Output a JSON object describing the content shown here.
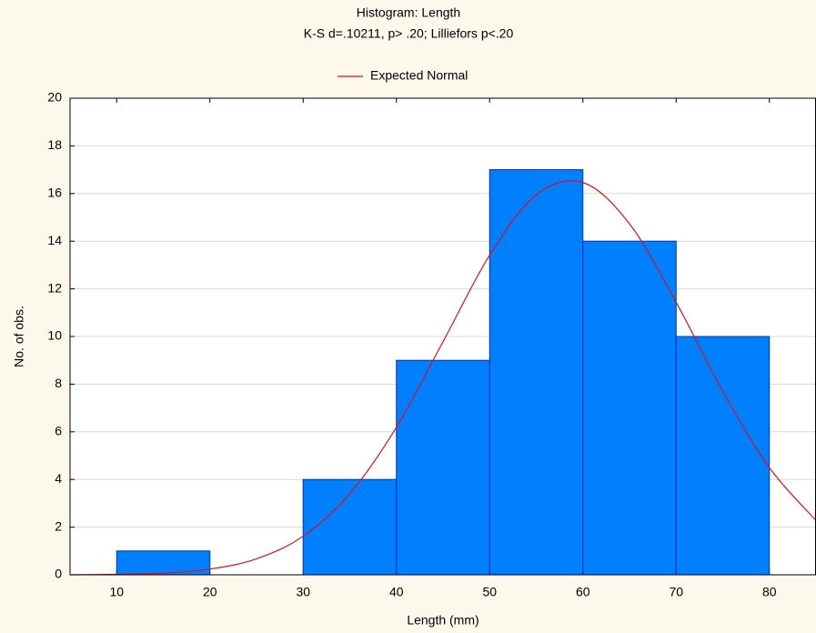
{
  "chart_data": {
    "type": "histogram",
    "title": "Histogram: Length",
    "subtitle": "K-S d=.10211, p> .20; Lilliefors p<.20",
    "xlabel": "Length (mm)",
    "ylabel": "No. of obs.",
    "bins": [
      10,
      20,
      30,
      40,
      50,
      60,
      70,
      80
    ],
    "values": [
      1,
      0,
      4,
      9,
      17,
      14,
      10
    ],
    "color": "#0080ff",
    "xlim": [
      5,
      85
    ],
    "xticks": [
      10,
      20,
      30,
      40,
      50,
      60,
      70,
      80
    ],
    "ylim": [
      0,
      20
    ],
    "yticks": [
      0,
      2,
      4,
      6,
      8,
      10,
      12,
      14,
      16,
      18,
      20
    ],
    "grid": true,
    "legend": "top",
    "overlay": {
      "type": "line",
      "name": "Expected Normal",
      "color": "#e01010",
      "x": [
        5,
        10,
        15,
        20,
        25,
        30,
        35,
        40,
        45,
        50,
        55,
        60,
        65,
        70,
        75,
        80,
        85
      ],
      "values": [
        0.0,
        0.02,
        0.07,
        0.24,
        0.67,
        1.62,
        3.4,
        6.19,
        9.78,
        13.41,
        15.95,
        16.46,
        14.73,
        11.44,
        7.7,
        4.5,
        2.28
      ]
    }
  }
}
